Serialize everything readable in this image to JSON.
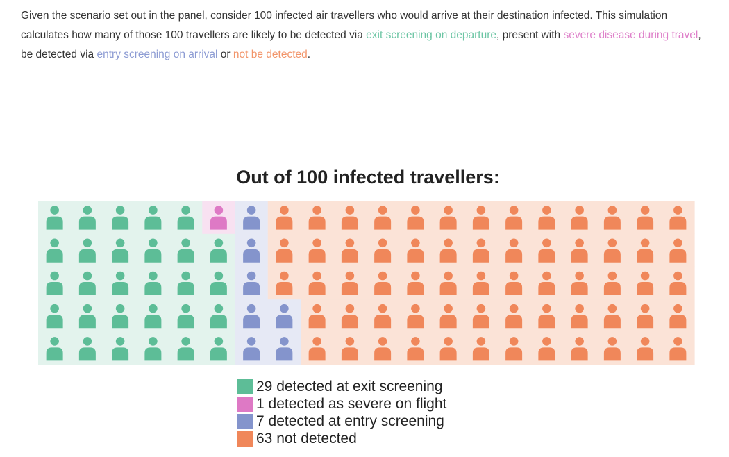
{
  "intro": {
    "part1": "Given the scenario set out in the panel, consider 100 infected air travellers who would arrive at their destination infected. This simulation calculates how many of those 100 travellers are likely to be detected via ",
    "exit": "exit screening on departure",
    "part2": ", present with ",
    "severe": "severe disease during travel",
    "part3": ", be detected via ",
    "entry": "entry screening on arrival",
    "part4": " or ",
    "not": "not be detected",
    "part5": "."
  },
  "chart_data": {
    "type": "waffle",
    "title": "Out of 100 infected travellers:",
    "total": 100,
    "rows": 5,
    "columns": 20,
    "fill_order": "column-major, bottom-to-top, left-to-right",
    "categories": [
      {
        "key": "exit",
        "count": 29,
        "label": "29 detected at exit screening",
        "icon_color": "#5dbd97",
        "bg_color": "#e3f3ed"
      },
      {
        "key": "severe",
        "count": 1,
        "label": "1 detected as severe on flight",
        "icon_color": "#de79c5",
        "bg_color": "#f8e1f1"
      },
      {
        "key": "entry",
        "count": 7,
        "label": "7 detected at entry screening",
        "icon_color": "#8494cc",
        "bg_color": "#e6e9f5"
      },
      {
        "key": "not",
        "count": 63,
        "label": "63 not detected",
        "icon_color": "#f0875a",
        "bg_color": "#fbe3d7"
      }
    ],
    "icon": "person-icon",
    "legend_position": "bottom-center"
  }
}
